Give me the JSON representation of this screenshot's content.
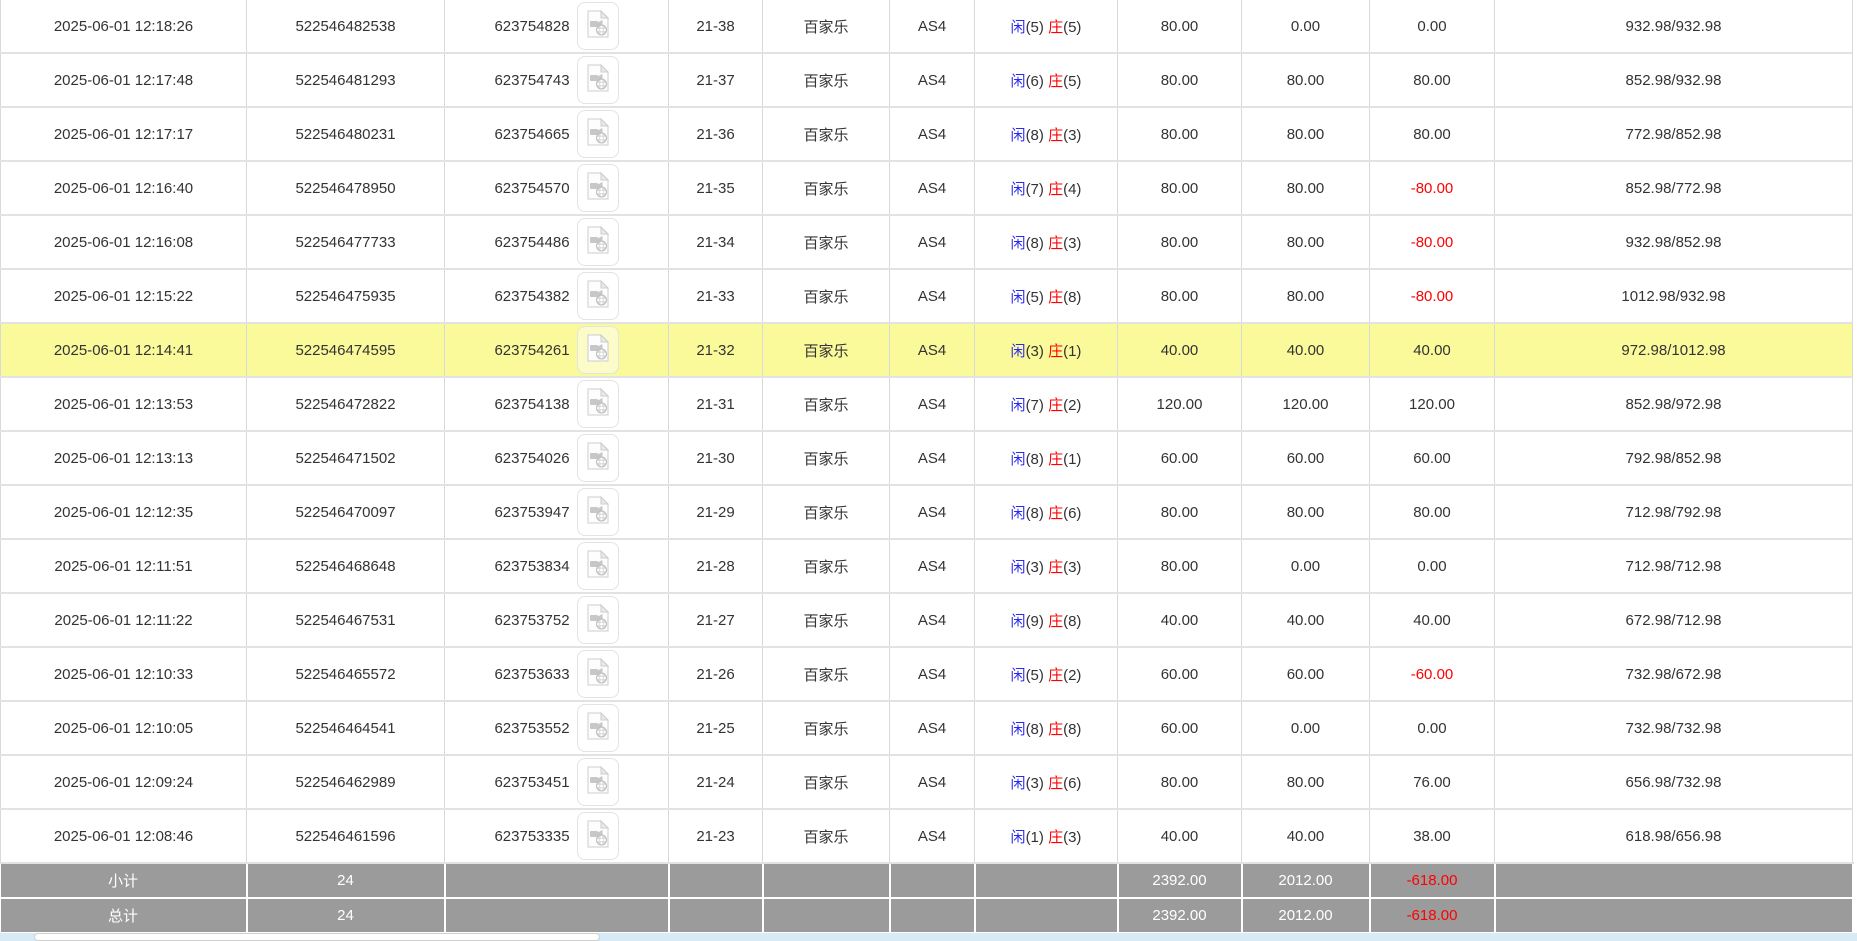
{
  "colors": {
    "highlight_row": "#fafa9b",
    "summary_background": "#9b9b9b",
    "bet_amount_blue": "#0a6cff",
    "player_blue": "#2a2aee",
    "banker_red": "#ff0000",
    "negative_red": "#ff0000",
    "scrollbar_track": "#d7eaf6",
    "scrollbar_thumb": "#ffffff"
  },
  "icons": {
    "video": "video-file-icon"
  },
  "table": {
    "rows": [
      {
        "time": "2025-06-01 12:18:26",
        "bet_id": "522546482538",
        "game_no": "623754828",
        "round": "21-38",
        "game": "百家乐",
        "table": "AS4",
        "player_label": "闲",
        "player_score": "(5)",
        "banker_label": "庄",
        "banker_score": "(5)",
        "bet": "80.00",
        "valid": "0.00",
        "winloss": "0.00",
        "balance": "932.98/932.98",
        "highlighted": false
      },
      {
        "time": "2025-06-01 12:17:48",
        "bet_id": "522546481293",
        "game_no": "623754743",
        "round": "21-37",
        "game": "百家乐",
        "table": "AS4",
        "player_label": "闲",
        "player_score": "(6)",
        "banker_label": "庄",
        "banker_score": "(5)",
        "bet": "80.00",
        "valid": "80.00",
        "winloss": "80.00",
        "balance": "852.98/932.98",
        "highlighted": false
      },
      {
        "time": "2025-06-01 12:17:17",
        "bet_id": "522546480231",
        "game_no": "623754665",
        "round": "21-36",
        "game": "百家乐",
        "table": "AS4",
        "player_label": "闲",
        "player_score": "(8)",
        "banker_label": "庄",
        "banker_score": "(3)",
        "bet": "80.00",
        "valid": "80.00",
        "winloss": "80.00",
        "balance": "772.98/852.98",
        "highlighted": false
      },
      {
        "time": "2025-06-01 12:16:40",
        "bet_id": "522546478950",
        "game_no": "623754570",
        "round": "21-35",
        "game": "百家乐",
        "table": "AS4",
        "player_label": "闲",
        "player_score": "(7)",
        "banker_label": "庄",
        "banker_score": "(4)",
        "bet": "80.00",
        "valid": "80.00",
        "winloss": "-80.00",
        "balance": "852.98/772.98",
        "highlighted": false
      },
      {
        "time": "2025-06-01 12:16:08",
        "bet_id": "522546477733",
        "game_no": "623754486",
        "round": "21-34",
        "game": "百家乐",
        "table": "AS4",
        "player_label": "闲",
        "player_score": "(8)",
        "banker_label": "庄",
        "banker_score": "(3)",
        "bet": "80.00",
        "valid": "80.00",
        "winloss": "-80.00",
        "balance": "932.98/852.98",
        "highlighted": false
      },
      {
        "time": "2025-06-01 12:15:22",
        "bet_id": "522546475935",
        "game_no": "623754382",
        "round": "21-33",
        "game": "百家乐",
        "table": "AS4",
        "player_label": "闲",
        "player_score": "(5)",
        "banker_label": "庄",
        "banker_score": "(8)",
        "bet": "80.00",
        "valid": "80.00",
        "winloss": "-80.00",
        "balance": "1012.98/932.98",
        "highlighted": false
      },
      {
        "time": "2025-06-01 12:14:41",
        "bet_id": "522546474595",
        "game_no": "623754261",
        "round": "21-32",
        "game": "百家乐",
        "table": "AS4",
        "player_label": "闲",
        "player_score": "(3)",
        "banker_label": "庄",
        "banker_score": "(1)",
        "bet": "40.00",
        "valid": "40.00",
        "winloss": "40.00",
        "balance": "972.98/1012.98",
        "highlighted": true
      },
      {
        "time": "2025-06-01 12:13:53",
        "bet_id": "522546472822",
        "game_no": "623754138",
        "round": "21-31",
        "game": "百家乐",
        "table": "AS4",
        "player_label": "闲",
        "player_score": "(7)",
        "banker_label": "庄",
        "banker_score": "(2)",
        "bet": "120.00",
        "valid": "120.00",
        "winloss": "120.00",
        "balance": "852.98/972.98",
        "highlighted": false
      },
      {
        "time": "2025-06-01 12:13:13",
        "bet_id": "522546471502",
        "game_no": "623754026",
        "round": "21-30",
        "game": "百家乐",
        "table": "AS4",
        "player_label": "闲",
        "player_score": "(8)",
        "banker_label": "庄",
        "banker_score": "(1)",
        "bet": "60.00",
        "valid": "60.00",
        "winloss": "60.00",
        "balance": "792.98/852.98",
        "highlighted": false
      },
      {
        "time": "2025-06-01 12:12:35",
        "bet_id": "522546470097",
        "game_no": "623753947",
        "round": "21-29",
        "game": "百家乐",
        "table": "AS4",
        "player_label": "闲",
        "player_score": "(8)",
        "banker_label": "庄",
        "banker_score": "(6)",
        "bet": "80.00",
        "valid": "80.00",
        "winloss": "80.00",
        "balance": "712.98/792.98",
        "highlighted": false
      },
      {
        "time": "2025-06-01 12:11:51",
        "bet_id": "522546468648",
        "game_no": "623753834",
        "round": "21-28",
        "game": "百家乐",
        "table": "AS4",
        "player_label": "闲",
        "player_score": "(3)",
        "banker_label": "庄",
        "banker_score": "(3)",
        "bet": "80.00",
        "valid": "0.00",
        "winloss": "0.00",
        "balance": "712.98/712.98",
        "highlighted": false
      },
      {
        "time": "2025-06-01 12:11:22",
        "bet_id": "522546467531",
        "game_no": "623753752",
        "round": "21-27",
        "game": "百家乐",
        "table": "AS4",
        "player_label": "闲",
        "player_score": "(9)",
        "banker_label": "庄",
        "banker_score": "(8)",
        "bet": "40.00",
        "valid": "40.00",
        "winloss": "40.00",
        "balance": "672.98/712.98",
        "highlighted": false
      },
      {
        "time": "2025-06-01 12:10:33",
        "bet_id": "522546465572",
        "game_no": "623753633",
        "round": "21-26",
        "game": "百家乐",
        "table": "AS4",
        "player_label": "闲",
        "player_score": "(5)",
        "banker_label": "庄",
        "banker_score": "(2)",
        "bet": "60.00",
        "valid": "60.00",
        "winloss": "-60.00",
        "balance": "732.98/672.98",
        "highlighted": false
      },
      {
        "time": "2025-06-01 12:10:05",
        "bet_id": "522546464541",
        "game_no": "623753552",
        "round": "21-25",
        "game": "百家乐",
        "table": "AS4",
        "player_label": "闲",
        "player_score": "(8)",
        "banker_label": "庄",
        "banker_score": "(8)",
        "bet": "60.00",
        "valid": "0.00",
        "winloss": "0.00",
        "balance": "732.98/732.98",
        "highlighted": false
      },
      {
        "time": "2025-06-01 12:09:24",
        "bet_id": "522546462989",
        "game_no": "623753451",
        "round": "21-24",
        "game": "百家乐",
        "table": "AS4",
        "player_label": "闲",
        "player_score": "(3)",
        "banker_label": "庄",
        "banker_score": "(6)",
        "bet": "80.00",
        "valid": "80.00",
        "winloss": "76.00",
        "balance": "656.98/732.98",
        "highlighted": false
      },
      {
        "time": "2025-06-01 12:08:46",
        "bet_id": "522546461596",
        "game_no": "623753335",
        "round": "21-23",
        "game": "百家乐",
        "table": "AS4",
        "player_label": "闲",
        "player_score": "(1)",
        "banker_label": "庄",
        "banker_score": "(3)",
        "bet": "40.00",
        "valid": "40.00",
        "winloss": "38.00",
        "balance": "618.98/656.98",
        "highlighted": false
      }
    ],
    "summary": [
      {
        "label": "小计",
        "count": "24",
        "bet": "2392.00",
        "valid": "2012.00",
        "winloss": "-618.00"
      },
      {
        "label": "总计",
        "count": "24",
        "bet": "2392.00",
        "valid": "2012.00",
        "winloss": "-618.00"
      }
    ]
  }
}
